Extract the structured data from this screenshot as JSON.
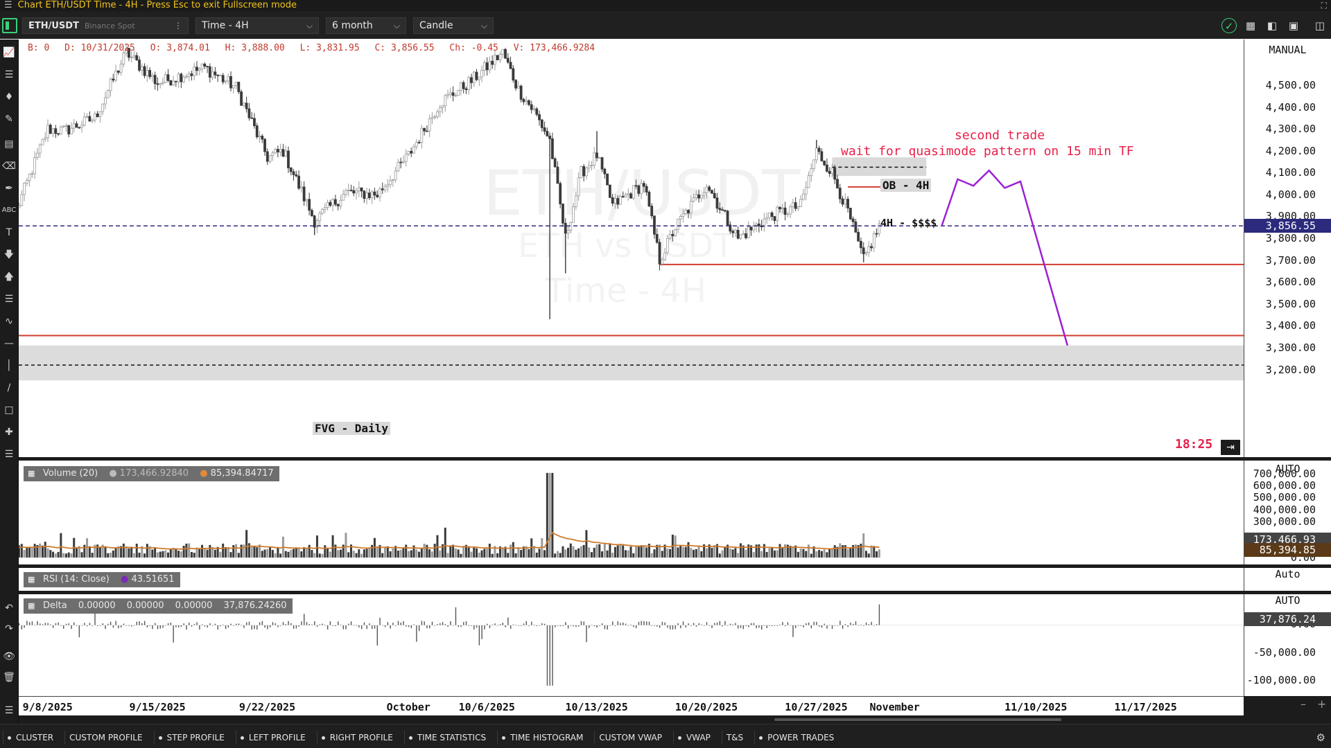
{
  "window": {
    "title": "Chart ETH/USDT Time - 4H - Press Esc to exit Fullscreen mode"
  },
  "toolbar": {
    "symbol": "ETH/USDT",
    "exchange": "Binance Spot",
    "timeframe": "Time - 4H",
    "range": "6 month",
    "chart_type": "Candle"
  },
  "ohlc": {
    "b": "B: 0",
    "d": "D: 10/31/2025",
    "o": "O: 3,874.01",
    "h": "H: 3,888.00",
    "l": "L: 3,831.95",
    "c": "C: 3,856.55",
    "ch": "Ch: -0.45",
    "v": "V: 173,466.9284"
  },
  "watermark": {
    "symbol": "ETH/USDT",
    "sub": "ETH vs USDT",
    "tf": "Time - 4H"
  },
  "annotations": {
    "second_trade": "second trade",
    "quasimode": "wait for quasimode pattern on 15 min TF",
    "ob": "OB - 4H",
    "liquidity": "4H - $$$$",
    "fvg": "FVG - Daily",
    "countdown": "18:25",
    "colors": {
      "annotation_text": "#e8204a",
      "projection": "#9b1fd6",
      "level": "#d23c2e",
      "price_line": "#2c2a7c"
    }
  },
  "price_axis": {
    "mode": "MANUAL",
    "labels": [
      "4,500.00",
      "4,400.00",
      "4,300.00",
      "4,200.00",
      "4,100.00",
      "4,000.00",
      "3,900.00",
      "3,800.00",
      "3,700.00",
      "3,600.00",
      "3,500.00",
      "3,400.00",
      "3,300.00",
      "3,200.00"
    ],
    "current": "3,856.55"
  },
  "volume": {
    "legend_title": "Volume (20)",
    "v1": "173,466.92840",
    "v2": "85,394.84717",
    "axis_mode": "AUTO",
    "labels": [
      "700,000.00",
      "600,000.00",
      "500,000.00",
      "400,000.00",
      "300,000.00",
      "0.00"
    ],
    "tag_current": "173,466.93",
    "tag_ma": "85,394.85"
  },
  "rsi": {
    "legend_title": "RSI (14: Close)",
    "value": "43.51651",
    "axis_mode": "Auto"
  },
  "delta": {
    "legend_title": "Delta",
    "v1": "0.00000",
    "v2": "0.00000",
    "v3": "0.00000",
    "v4": "37,876.24260",
    "axis_mode": "AUTO",
    "labels": [
      "-50,000.00",
      "-100,000.00"
    ],
    "tag": "37,876.24",
    "hidden_label": "0.00"
  },
  "time_axis": {
    "labels": [
      "9/8/2025",
      "9/15/2025",
      "9/22/2025",
      "October",
      "10/6/2025",
      "10/13/2025",
      "10/20/2025",
      "10/27/2025",
      "November",
      "11/10/2025",
      "11/17/2025"
    ]
  },
  "bottom_tabs": [
    "CLUSTER",
    "CUSTOM PROFILE",
    "STEP PROFILE",
    "LEFT PROFILE",
    "RIGHT PROFILE",
    "TIME STATISTICS",
    "TIME HISTOGRAM",
    "CUSTOM VWAP",
    "VWAP",
    "T&S",
    "POWER TRADES"
  ],
  "chart_data": {
    "type": "candlestick",
    "symbol": "ETH/USDT",
    "timeframe": "4H",
    "y_range": [
      3150,
      4550
    ],
    "x_range": [
      "2025-09-06",
      "2025-11-22"
    ],
    "last_bar": {
      "date": "10/31/2025",
      "open": 3874.01,
      "high": 3888.0,
      "low": 3831.95,
      "close": 3856.55,
      "volume": 173466.9284
    },
    "anchors": [
      [
        "2025-09-06",
        3930
      ],
      [
        "2025-09-08",
        4300
      ],
      [
        "2025-09-09",
        4290
      ],
      [
        "2025-09-11",
        4350
      ],
      [
        "2025-09-13",
        4650
      ],
      [
        "2025-09-15",
        4510
      ],
      [
        "2025-09-18",
        4580
      ],
      [
        "2025-09-20",
        4490
      ],
      [
        "2025-09-22",
        4170
      ],
      [
        "2025-09-23",
        4200
      ],
      [
        "2025-09-25",
        3880
      ],
      [
        "2025-09-27",
        4010
      ],
      [
        "2025-09-29",
        4000
      ],
      [
        "2025-10-01",
        4180
      ],
      [
        "2025-10-03",
        4420
      ],
      [
        "2025-10-05",
        4520
      ],
      [
        "2025-10-07",
        4650
      ],
      [
        "2025-10-08",
        4480
      ],
      [
        "2025-10-09",
        4380
      ],
      [
        "2025-10-10",
        4250
      ],
      [
        "2025-10-11",
        3800
      ],
      [
        "2025-10-12",
        4100
      ],
      [
        "2025-10-13",
        4180
      ],
      [
        "2025-10-14",
        3950
      ],
      [
        "2025-10-16",
        4050
      ],
      [
        "2025-10-17",
        3700
      ],
      [
        "2025-10-18",
        3850
      ],
      [
        "2025-10-20",
        4050
      ],
      [
        "2025-10-21",
        3920
      ],
      [
        "2025-10-22",
        3800
      ],
      [
        "2025-10-24",
        3900
      ],
      [
        "2025-10-26",
        3950
      ],
      [
        "2025-10-27",
        4200
      ],
      [
        "2025-10-28",
        4100
      ],
      [
        "2025-10-29",
        3920
      ],
      [
        "2025-10-30",
        3700
      ],
      [
        "2025-10-31",
        3856.55
      ]
    ],
    "extremes": [
      [
        "2025-10-10",
        "low",
        3430
      ],
      [
        "2025-10-11",
        "low",
        3640
      ],
      [
        "2025-10-17",
        "low",
        3690
      ],
      [
        "2025-10-30",
        "low",
        3690
      ],
      [
        "2025-10-27",
        "high",
        4250
      ],
      [
        "2025-10-13",
        "high",
        4290
      ],
      [
        "2025-09-25",
        "low",
        3815
      ]
    ],
    "levels": {
      "current_price": 3856.55,
      "support_1": 3680,
      "support_2": 3355,
      "ob_4h_zone": [
        4085,
        4170
      ],
      "ob_4h_mid": 4125,
      "liquidity_4h": 4035,
      "fvg_daily_zone": [
        3150,
        3310
      ],
      "fvg_daily_mid": 3220
    },
    "projection": [
      [
        "2025-11-04",
        3860
      ],
      [
        "2025-11-05",
        4070
      ],
      [
        "2025-11-06",
        4040
      ],
      [
        "2025-11-07",
        4110
      ],
      [
        "2025-11-08",
        4030
      ],
      [
        "2025-11-09",
        4060
      ],
      [
        "2025-11-12",
        3310
      ]
    ],
    "volume": {
      "ylim": [
        0,
        750000
      ],
      "max_spike": 705000
    },
    "delta": {
      "ylim": [
        -120000,
        50000
      ],
      "min_spike": -110000,
      "last": 37876.2426
    },
    "rsi": {
      "value": 43.51651
    }
  }
}
